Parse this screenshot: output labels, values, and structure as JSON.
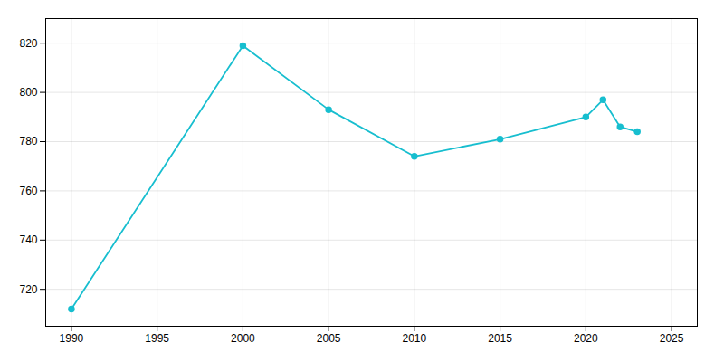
{
  "chart_data": {
    "type": "line",
    "x": [
      1990,
      2000,
      2005,
      2010,
      2015,
      2020,
      2021,
      2022,
      2023
    ],
    "values": [
      712,
      819,
      793,
      774,
      781,
      790,
      797,
      786,
      784
    ],
    "color": "#17becf",
    "marker": "circle",
    "xlim": [
      1988.5,
      2026.5
    ],
    "ylim": [
      705,
      830
    ],
    "xticks": [
      1990,
      1995,
      2000,
      2005,
      2010,
      2015,
      2020,
      2025
    ],
    "yticks": [
      720,
      740,
      760,
      780,
      800,
      820
    ],
    "grid": true
  }
}
